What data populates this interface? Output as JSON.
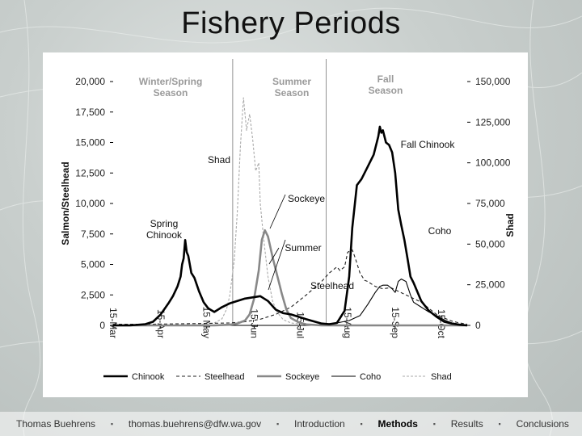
{
  "slide": {
    "title": "Fishery Periods"
  },
  "footer": {
    "author": "Thomas Buehrens",
    "email": "thomas.buehrens@dfw.wa.gov",
    "separator": "▪",
    "nav": [
      {
        "label": "Introduction",
        "active": false
      },
      {
        "label": "Methods",
        "active": true
      },
      {
        "label": "Results",
        "active": false
      },
      {
        "label": "Conclusions",
        "active": false
      }
    ]
  },
  "chart_data": {
    "type": "line",
    "ylabel": "Salmon/Steelhead",
    "y2label": "Shad",
    "ylim": [
      0,
      20000
    ],
    "y2lim": [
      0,
      150000
    ],
    "y_ticks": [
      "0",
      "2,500",
      "5,000",
      "7,500",
      "10,000",
      "12,500",
      "15,000",
      "17,500",
      "20,000"
    ],
    "y2_ticks": [
      "0",
      "25,000",
      "50,000",
      "75,000",
      "100,000",
      "125,000",
      "150,000"
    ],
    "x_ticks": [
      "15-Mar",
      "15-Apr",
      "15 May",
      "15-Jun",
      "15-Jul",
      "15-Aug",
      "15-Sep",
      "15-Oct"
    ],
    "x_tick_doy": [
      74,
      105,
      135,
      166,
      196,
      227,
      258,
      288
    ],
    "xlim_doy": [
      74,
      305
    ],
    "season_dividers_doy": [
      152,
      213
    ],
    "seasons": [
      "Winter/Spring\nSeason",
      "Summer\nSeason",
      "Fall\nSeason"
    ],
    "annotations": [
      {
        "text": "Spring\nChinook"
      },
      {
        "text": "Shad"
      },
      {
        "text": "Sockeye"
      },
      {
        "text": "Summer"
      },
      {
        "text": "Steelhead"
      },
      {
        "text": "Fall Chinook"
      },
      {
        "text": "Coho"
      }
    ],
    "series": [
      {
        "name": "Chinook",
        "axis": "left",
        "color": "#000000",
        "width": 2.6,
        "dash": "",
        "x": [
          74,
          85,
          95,
          100,
          105,
          110,
          113,
          116,
          118,
          119,
          120,
          121,
          122,
          123,
          125,
          127,
          130,
          133,
          136,
          140,
          145,
          150,
          155,
          160,
          165,
          170,
          175,
          180,
          185,
          190,
          195,
          200,
          210,
          215,
          220,
          225,
          228,
          230,
          233,
          236,
          240,
          244,
          247,
          248,
          249,
          250,
          252,
          254,
          256,
          258,
          260,
          262,
          264,
          266,
          268,
          270,
          275,
          280,
          285,
          290,
          295,
          300,
          305
        ],
        "y": [
          0,
          0,
          100,
          300,
          900,
          1800,
          2400,
          3200,
          4000,
          5000,
          5500,
          7000,
          6000,
          5700,
          4300,
          3900,
          2800,
          1900,
          1400,
          1100,
          1500,
          1800,
          2000,
          2200,
          2300,
          2400,
          2000,
          1300,
          1000,
          900,
          700,
          500,
          150,
          100,
          200,
          1200,
          4000,
          8000,
          11500,
          12000,
          13000,
          14000,
          15500,
          16300,
          15800,
          16000,
          15000,
          14800,
          14200,
          12500,
          9500,
          8200,
          7000,
          5500,
          4000,
          3500,
          2000,
          1200,
          700,
          300,
          150,
          50,
          0
        ]
      },
      {
        "name": "Steelhead",
        "axis": "left",
        "color": "#222222",
        "width": 1.1,
        "dash": "4,3",
        "x": [
          74,
          100,
          130,
          150,
          160,
          170,
          180,
          190,
          200,
          210,
          215,
          220,
          222,
          225,
          227,
          230,
          232,
          235,
          238,
          240,
          245,
          250,
          255,
          260,
          265,
          270,
          275,
          280,
          285,
          290,
          295,
          300,
          305
        ],
        "y": [
          100,
          100,
          150,
          200,
          300,
          500,
          900,
          1500,
          2500,
          3600,
          4300,
          4800,
          4500,
          4800,
          6000,
          6200,
          5500,
          4300,
          3700,
          3600,
          3200,
          3000,
          3100,
          2800,
          2500,
          2200,
          1900,
          1400,
          900,
          600,
          350,
          200,
          100
        ]
      },
      {
        "name": "Sockeye",
        "axis": "left",
        "color": "#888888",
        "width": 2.6,
        "dash": "",
        "x": [
          74,
          140,
          150,
          155,
          160,
          163,
          166,
          169,
          171,
          173,
          175,
          178,
          181,
          184,
          187,
          190,
          195,
          200,
          210,
          305
        ],
        "y": [
          0,
          0,
          50,
          150,
          400,
          900,
          2200,
          4500,
          7000,
          7800,
          7300,
          5600,
          4100,
          2600,
          1300,
          600,
          250,
          80,
          0,
          0
        ]
      },
      {
        "name": "Coho",
        "axis": "left",
        "color": "#000000",
        "width": 1.1,
        "dash": "",
        "x": [
          74,
          200,
          210,
          220,
          228,
          235,
          240,
          245,
          248,
          250,
          253,
          256,
          258,
          260,
          262,
          265,
          268,
          270,
          275,
          280,
          285,
          290,
          295,
          300,
          305
        ],
        "y": [
          0,
          0,
          80,
          200,
          400,
          800,
          1700,
          2700,
          3200,
          3300,
          3300,
          3000,
          2700,
          3600,
          3800,
          3600,
          2500,
          1900,
          1500,
          1100,
          800,
          450,
          200,
          100,
          0
        ]
      },
      {
        "name": "Shad",
        "axis": "right",
        "color": "#aaaaaa",
        "width": 1.1,
        "dash": "3,2",
        "x": [
          74,
          120,
          130,
          140,
          145,
          148,
          150,
          153,
          155,
          157,
          159,
          161,
          163,
          165,
          167,
          169,
          170,
          172,
          175,
          178,
          181,
          185,
          190,
          200,
          210,
          305
        ],
        "y": [
          0,
          0,
          400,
          1500,
          4000,
          10000,
          18000,
          40000,
          70000,
          110000,
          140000,
          120000,
          130000,
          115000,
          95000,
          100000,
          75000,
          55000,
          30000,
          15000,
          8000,
          3500,
          1500,
          500,
          100,
          0
        ]
      }
    ]
  }
}
